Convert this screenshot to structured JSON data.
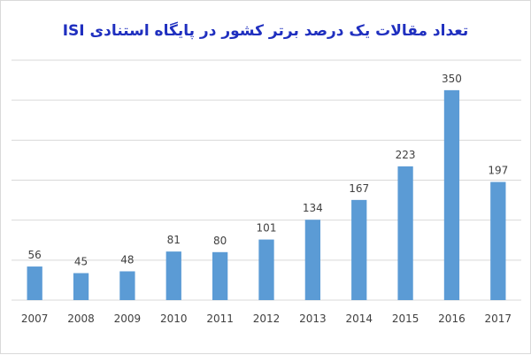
{
  "chart_data": {
    "type": "bar",
    "title": "تعداد مقالات یک درصد برتر کشور  در پایگاه استنادی  ISI",
    "categories": [
      "2007",
      "2008",
      "2009",
      "2010",
      "2011",
      "2012",
      "2013",
      "2014",
      "2015",
      "2016",
      "2017"
    ],
    "values": [
      56,
      45,
      48,
      81,
      80,
      101,
      134,
      167,
      223,
      350,
      197
    ],
    "ylim": [
      0,
      400
    ],
    "grid": true,
    "legend": "none",
    "xlabel": "",
    "ylabel": "",
    "bar_color": "#5b9bd5",
    "gridline_color": "#d9d9d9",
    "title_color": "#1f2fbf"
  }
}
